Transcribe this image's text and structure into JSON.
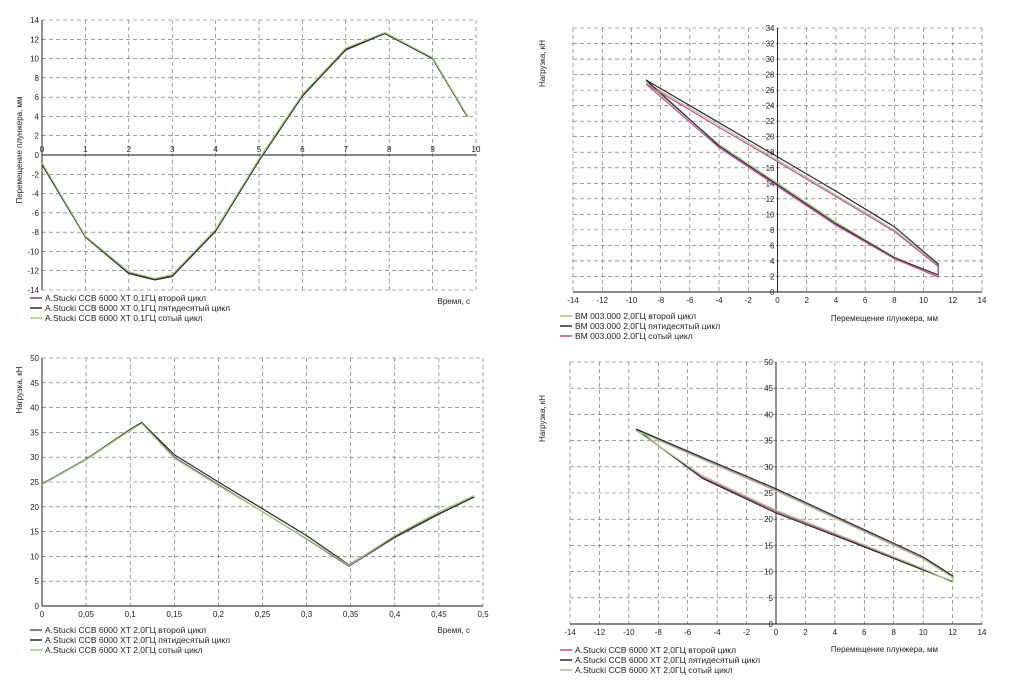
{
  "chart_data": [
    {
      "type": "line",
      "xlabel": "Время, с",
      "ylabel": "Перемещение плунжера, мм",
      "xlim": [
        0,
        10
      ],
      "ylim": [
        -14,
        14
      ],
      "xticks": [
        0,
        1,
        2,
        3,
        4,
        5,
        6,
        7,
        8,
        9,
        10
      ],
      "yticks": [
        -14,
        -12,
        -10,
        -8,
        -6,
        -4,
        -2,
        0,
        2,
        4,
        6,
        8,
        10,
        12,
        14
      ],
      "grid": true,
      "legend_position": "bottom-left",
      "series": [
        {
          "name": "A.Stucki CCB 6000 XT 0,1ГЦ второй цикл",
          "color": "#7a3f8f",
          "x": [
            0,
            1,
            2,
            2.6,
            3,
            4,
            5,
            6,
            7,
            7.9,
            9,
            9.8
          ],
          "y": [
            -1,
            -8.5,
            -12.2,
            -12.9,
            -12.5,
            -7.8,
            -0.5,
            6.2,
            11,
            12.6,
            10,
            4
          ]
        },
        {
          "name": "A.Stucki CCB 6000 XT 0,1ГЦ пятидесятый цикл",
          "color": "#2a2a2a",
          "x": [
            0,
            1,
            2,
            2.6,
            3,
            4,
            5,
            6,
            7,
            7.9,
            9,
            9.8
          ],
          "y": [
            -1,
            -8.5,
            -12.3,
            -12.95,
            -12.6,
            -7.9,
            -0.6,
            6.1,
            10.9,
            12.6,
            10,
            4
          ]
        },
        {
          "name": "A.Stucki CCB 6000 XT 0,1ГЦ сотый цикл",
          "color": "#9fcf78",
          "x": [
            0,
            1,
            2,
            2.6,
            3,
            4,
            5,
            6,
            7,
            7.9,
            9,
            9.8
          ],
          "y": [
            -0.8,
            -8.4,
            -12.1,
            -12.8,
            -12.4,
            -7.7,
            -0.4,
            6.3,
            11.1,
            12.7,
            10.1,
            4.1
          ]
        }
      ]
    },
    {
      "type": "line",
      "xlabel": "Перемещение плунжера, мм",
      "ylabel": "Нагрузка, кН",
      "xlim": [
        -14,
        14
      ],
      "ylim": [
        0,
        34
      ],
      "xticks": [
        -14,
        -12,
        -10,
        -8,
        -6,
        -4,
        -2,
        0,
        2,
        4,
        6,
        8,
        10,
        12,
        14
      ],
      "yticks": [
        0,
        2,
        4,
        6,
        8,
        10,
        12,
        14,
        16,
        18,
        20,
        22,
        24,
        26,
        28,
        30,
        32,
        34
      ],
      "grid": true,
      "legend_position": "bottom-left",
      "series": [
        {
          "name": "BM 003.000 2,0ГЦ второй цикл",
          "color": "#a9c98e",
          "x": [
            -9,
            -4,
            0,
            4,
            8,
            11,
            11,
            8,
            4,
            0,
            -4,
            -9
          ],
          "y": [
            27,
            21.5,
            17,
            12.5,
            8,
            3.5,
            2,
            4.5,
            9,
            14,
            19,
            27
          ]
        },
        {
          "name": "BM 003.000 2,0ГЦ пятидесятый цикл",
          "color": "#2a2a2a",
          "x": [
            -9,
            -4,
            0,
            4,
            8,
            11,
            11,
            8,
            4,
            0,
            -4,
            -9
          ],
          "y": [
            27.3,
            21.8,
            17.4,
            13,
            8.4,
            3.6,
            2.2,
            4.4,
            8.8,
            13.8,
            18.8,
            27.3
          ]
        },
        {
          "name": "BM 003.000 2,0ГЦ сотый цикл",
          "color": "#c64a9c",
          "x": [
            -9,
            -4,
            0,
            4,
            8,
            11,
            11,
            8,
            4,
            0,
            -4,
            -9
          ],
          "y": [
            26.8,
            21.2,
            16.8,
            12.3,
            7.8,
            3.3,
            1.9,
            4.3,
            8.6,
            13.6,
            18.6,
            26.8
          ]
        }
      ]
    },
    {
      "type": "line",
      "xlabel": "Время, с",
      "ylabel": "Нагрузка, кН",
      "xlim": [
        0,
        0.5
      ],
      "ylim": [
        0,
        50
      ],
      "xticks": [
        "0",
        "0,05",
        "0,1",
        "0,15",
        "0,2",
        "0,25",
        "0,3",
        "0,35",
        "0,4",
        "0,45",
        "0,5"
      ],
      "yticks": [
        0,
        5,
        10,
        15,
        20,
        25,
        30,
        35,
        40,
        45,
        50
      ],
      "grid": true,
      "legend_position": "bottom-left",
      "series": [
        {
          "name": "A.Stucki CCB 6000 XT 2,0ГЦ второй цикл",
          "color": "#7a3f8f",
          "x": [
            0,
            0.05,
            0.1,
            0.113,
            0.15,
            0.2,
            0.25,
            0.3,
            0.348,
            0.4,
            0.45,
            0.49
          ],
          "y": [
            24.5,
            29.5,
            35.5,
            37,
            30,
            24.5,
            19,
            13.5,
            8,
            13.8,
            18.5,
            22
          ]
        },
        {
          "name": "A.Stucki CCB 6000 XT 2,0ГЦ пятидесятый цикл",
          "color": "#2a2a2a",
          "x": [
            0,
            0.05,
            0.1,
            0.113,
            0.15,
            0.2,
            0.25,
            0.3,
            0.348,
            0.4,
            0.45,
            0.49
          ],
          "y": [
            24.6,
            29.6,
            35.6,
            37,
            30.5,
            25,
            19.6,
            14.2,
            8.3,
            14,
            18.6,
            22
          ]
        },
        {
          "name": "A.Stucki CCB 6000 XT 2,0ГЦ сотый цикл",
          "color": "#9fcf78",
          "x": [
            0,
            0.05,
            0.1,
            0.113,
            0.15,
            0.2,
            0.25,
            0.3,
            0.348,
            0.4,
            0.45,
            0.49
          ],
          "y": [
            24.5,
            29.5,
            35.4,
            36.8,
            29.8,
            24.3,
            19,
            13.6,
            8.2,
            14.2,
            19,
            22.3
          ]
        }
      ]
    },
    {
      "type": "line",
      "xlabel": "Перемещение плунжера, мм",
      "ylabel": "Нагрузка, кН",
      "xlim": [
        -14,
        14
      ],
      "ylim": [
        0,
        50
      ],
      "xticks": [
        -14,
        -12,
        -10,
        -8,
        -6,
        -4,
        -2,
        0,
        2,
        4,
        6,
        8,
        10,
        12,
        14
      ],
      "yticks": [
        0,
        5,
        10,
        15,
        20,
        25,
        30,
        35,
        40,
        45,
        50
      ],
      "grid": true,
      "legend_position": "bottom-left",
      "series": [
        {
          "name": "A.Stucki CCB 6000 XT 2,0ГЦ второй цикл",
          "color": "#c64a9c",
          "x": [
            -9.5,
            -5,
            0,
            5,
            10,
            12,
            12,
            10,
            5,
            0,
            -5,
            -9.5
          ],
          "y": [
            37,
            31.5,
            25.5,
            19,
            12.5,
            9,
            8,
            10.5,
            16,
            21.5,
            28,
            37
          ]
        },
        {
          "name": "A.Stucki CCB 6000 XT 2,0ГЦ пятидесятый цикл",
          "color": "#2a2a2a",
          "x": [
            -9.5,
            -5,
            0,
            5,
            10,
            12,
            12,
            10,
            5,
            0,
            -5,
            -9.5
          ],
          "y": [
            37.2,
            31.8,
            25.8,
            19.3,
            12.8,
            9.2,
            8.1,
            10.3,
            15.8,
            21.2,
            27.8,
            37.2
          ]
        },
        {
          "name": "A.Stucki CCB 6000 XT 2,0ГЦ сотый цикл",
          "color": "#a9c98e",
          "x": [
            -9.5,
            -5,
            0,
            5,
            10,
            12,
            12,
            10,
            5,
            0,
            -5,
            -9.5
          ],
          "y": [
            36.9,
            31.4,
            25.4,
            18.9,
            12.4,
            8.9,
            7.9,
            10.6,
            16.2,
            21.7,
            28.3,
            36.9
          ]
        }
      ]
    }
  ]
}
